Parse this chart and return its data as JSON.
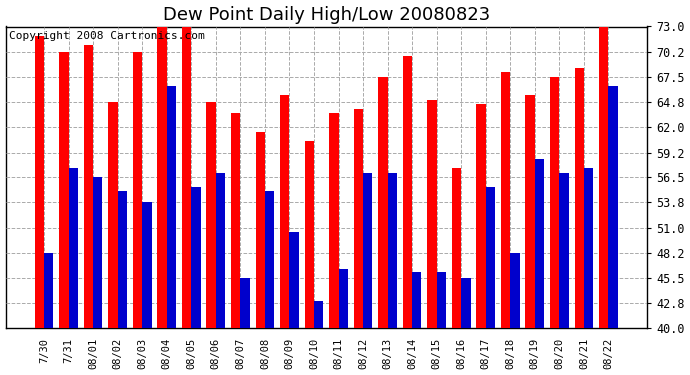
{
  "title": "Dew Point Daily High/Low 20080823",
  "copyright": "Copyright 2008 Cartronics.com",
  "categories": [
    "7/30",
    "7/31",
    "08/01",
    "08/02",
    "08/03",
    "08/04",
    "08/05",
    "08/06",
    "08/07",
    "08/08",
    "08/09",
    "08/10",
    "08/11",
    "08/12",
    "08/13",
    "08/14",
    "08/15",
    "08/16",
    "08/17",
    "08/18",
    "08/19",
    "08/20",
    "08/21",
    "08/22"
  ],
  "high_values": [
    72.0,
    70.2,
    71.0,
    64.8,
    70.2,
    73.0,
    73.0,
    64.8,
    63.5,
    61.5,
    65.5,
    60.5,
    63.5,
    64.0,
    67.5,
    69.8,
    65.0,
    57.5,
    64.5,
    68.0,
    65.5,
    67.5,
    68.5,
    73.0
  ],
  "low_values": [
    48.2,
    57.5,
    56.5,
    55.0,
    53.8,
    66.5,
    55.5,
    57.0,
    45.5,
    55.0,
    50.5,
    43.0,
    46.5,
    57.0,
    57.0,
    46.2,
    46.2,
    45.5,
    55.5,
    48.2,
    58.5,
    57.0,
    57.5,
    66.5
  ],
  "high_color": "#ff0000",
  "low_color": "#0000cc",
  "bg_color": "#ffffff",
  "ymin": 40.0,
  "ymax": 73.0,
  "yticks": [
    40.0,
    42.8,
    45.5,
    48.2,
    51.0,
    53.8,
    56.5,
    59.2,
    62.0,
    64.8,
    67.5,
    70.2,
    73.0
  ],
  "ytick_labels": [
    "40.0",
    "42.8",
    "45.5",
    "48.2",
    "51.0",
    "53.8",
    "56.5",
    "59.2",
    "62.0",
    "64.8",
    "67.5",
    "70.2",
    "73.0"
  ],
  "title_fontsize": 13,
  "copyright_fontsize": 8,
  "grid_color": "#aaaaaa",
  "bar_width": 0.38
}
